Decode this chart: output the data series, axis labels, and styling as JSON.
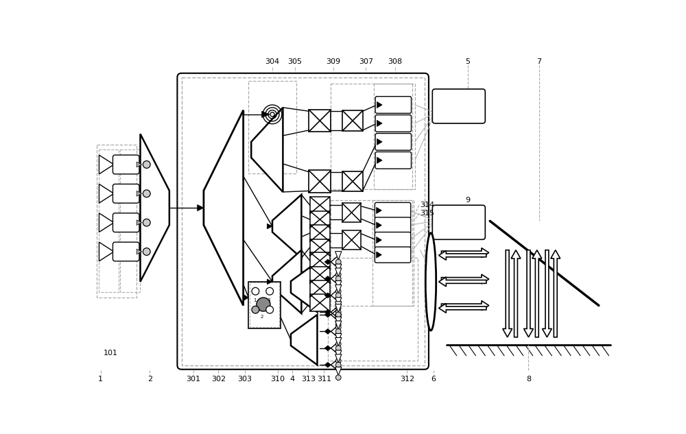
{
  "bg_color": "#ffffff",
  "lc": "#000000",
  "dc": "#999999",
  "gray": "#aaaaaa",
  "darkgray": "#555555",
  "figsize": [
    10.0,
    6.33
  ],
  "dpi": 100
}
